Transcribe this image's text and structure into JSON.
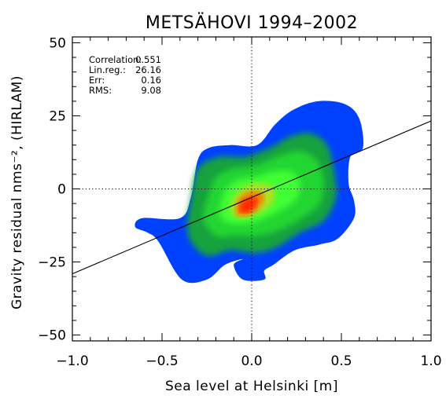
{
  "chart_data": {
    "type": "heatmap",
    "title": "METSÄHOVI 1994–2002",
    "xlabel": "Sea level at Helsinki [m]",
    "ylabel": "Gravity residual nms⁻², (HIRLAM)",
    "xlim": [
      -1.0,
      1.0
    ],
    "ylim": [
      -52,
      52
    ],
    "x_ticks": [
      -1.0,
      -0.5,
      0.0,
      0.5,
      1.0
    ],
    "x_tick_labels": [
      "−1.0",
      "−0.5",
      "0.0",
      "0.5",
      "1.0"
    ],
    "y_ticks": [
      -50,
      -25,
      0,
      25,
      50
    ],
    "y_tick_labels": [
      "−50",
      "−25",
      "0",
      "25",
      "50"
    ],
    "zero_lines": {
      "x": 0.0,
      "y": 0.0,
      "style": "dotted"
    },
    "regression_line": {
      "slope": 26.16,
      "intercept": -2.9,
      "x_range": [
        -1.0,
        1.0
      ]
    },
    "statistics": [
      {
        "label": "Correlation:",
        "value": "0.551"
      },
      {
        "label": "Lin.reg.:",
        "value": "26.16"
      },
      {
        "label": "Err:",
        "value": "0.16"
      },
      {
        "label": "RMS:",
        "value": "9.08"
      }
    ],
    "density": {
      "description_colorscale": [
        "#0040ff",
        "#00c000",
        "#00ff40",
        "#ff2000"
      ],
      "levels": [
        {
          "color": "#0040ff",
          "outline": [
            [
              -0.65,
              -13
            ],
            [
              -0.61,
              -10
            ],
            [
              -0.4,
              -10
            ],
            [
              -0.34,
              -3
            ],
            [
              -0.3,
              10
            ],
            [
              -0.24,
              14
            ],
            [
              -0.12,
              15
            ],
            [
              0.03,
              15
            ],
            [
              0.13,
              22
            ],
            [
              0.23,
              27
            ],
            [
              0.37,
              30
            ],
            [
              0.52,
              29
            ],
            [
              0.6,
              24
            ],
            [
              0.62,
              14
            ],
            [
              0.55,
              11
            ],
            [
              0.54,
              2
            ],
            [
              0.57,
              -4
            ],
            [
              0.57,
              -10
            ],
            [
              0.48,
              -17
            ],
            [
              0.38,
              -19
            ],
            [
              0.24,
              -21
            ],
            [
              0.12,
              -26
            ],
            [
              0.07,
              -28
            ],
            [
              0.07,
              -31
            ],
            [
              -0.05,
              -31
            ],
            [
              -0.1,
              -26
            ],
            [
              -0.05,
              -24
            ],
            [
              -0.15,
              -26
            ],
            [
              -0.25,
              -31
            ],
            [
              -0.39,
              -31
            ],
            [
              -0.52,
              -18
            ],
            [
              -0.58,
              -15
            ]
          ]
        },
        {
          "color": "#14a23c",
          "outline": [
            [
              -0.36,
              -13
            ],
            [
              -0.34,
              -4
            ],
            [
              -0.3,
              7
            ],
            [
              -0.18,
              11
            ],
            [
              -0.04,
              11
            ],
            [
              0.1,
              14
            ],
            [
              0.22,
              18
            ],
            [
              0.33,
              19
            ],
            [
              0.42,
              15
            ],
            [
              0.46,
              6
            ],
            [
              0.47,
              -3
            ],
            [
              0.4,
              -11
            ],
            [
              0.27,
              -15
            ],
            [
              0.14,
              -20
            ],
            [
              0.02,
              -22
            ],
            [
              -0.12,
              -21
            ],
            [
              -0.24,
              -23
            ],
            [
              -0.33,
              -19
            ]
          ]
        },
        {
          "color": "#22d632",
          "outline": [
            [
              -0.27,
              -10
            ],
            [
              -0.24,
              -2
            ],
            [
              -0.2,
              4
            ],
            [
              -0.1,
              7
            ],
            [
              0.02,
              8
            ],
            [
              0.14,
              11
            ],
            [
              0.26,
              13
            ],
            [
              0.36,
              10
            ],
            [
              0.4,
              3
            ],
            [
              0.38,
              -5
            ],
            [
              0.28,
              -10
            ],
            [
              0.16,
              -14
            ],
            [
              0.04,
              -16
            ],
            [
              -0.08,
              -16
            ],
            [
              -0.2,
              -16
            ]
          ]
        },
        {
          "color": "#40ff30",
          "outline": [
            [
              -0.18,
              -8
            ],
            [
              -0.15,
              -1
            ],
            [
              -0.08,
              3
            ],
            [
              0.02,
              4
            ],
            [
              0.12,
              6
            ],
            [
              0.22,
              6
            ],
            [
              0.27,
              2
            ],
            [
              0.24,
              -4
            ],
            [
              0.14,
              -8
            ],
            [
              0.03,
              -11
            ],
            [
              -0.07,
              -12
            ],
            [
              -0.15,
              -11
            ]
          ]
        },
        {
          "color": "#b0e020",
          "outline": [
            [
              -0.12,
              -7
            ],
            [
              -0.09,
              -2
            ],
            [
              -0.03,
              1
            ],
            [
              0.04,
              2
            ],
            [
              0.11,
              1
            ],
            [
              0.13,
              -3
            ],
            [
              0.08,
              -7
            ],
            [
              0.0,
              -9
            ],
            [
              -0.07,
              -10
            ]
          ]
        },
        {
          "color": "#ff7000",
          "outline": [
            [
              -0.09,
              -7
            ],
            [
              -0.06,
              -3
            ],
            [
              -0.01,
              -1
            ],
            [
              0.04,
              -1
            ],
            [
              0.07,
              -3
            ],
            [
              0.04,
              -6
            ],
            [
              -0.02,
              -9
            ],
            [
              -0.07,
              -9
            ]
          ]
        },
        {
          "color": "#ff2000",
          "outline": [
            [
              -0.07,
              -7
            ],
            [
              -0.04,
              -4
            ],
            [
              0.0,
              -3
            ],
            [
              0.03,
              -4
            ],
            [
              0.02,
              -6
            ],
            [
              -0.02,
              -8
            ],
            [
              -0.05,
              -8
            ]
          ]
        }
      ]
    }
  }
}
